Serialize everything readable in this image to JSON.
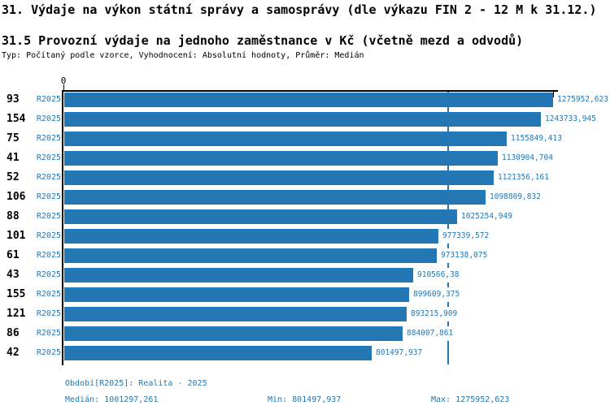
{
  "header": {
    "title": "31. Výdaje na výkon státní správy a samosprávy (dle výkazu FIN 2 - 12 M k 31.12.)",
    "subtitle": "31.5 Provozní výdaje na jednoho zaměstnance v Kč (včetně mezd a odvodů)",
    "meta": "Typ: Počítaný podle vzorce, Vyhodnocení: Absolutní hodnoty, Průměr: Medián"
  },
  "colors": {
    "bar": "#2377b4",
    "accent_text": "#2377b4",
    "axis": "#000000",
    "background": "#ffffff"
  },
  "chart_data": {
    "type": "bar",
    "orientation": "horizontal",
    "title": "31.5 Provozní výdaje na jednoho zaměstnance v Kč (včetně mezd a odvodů)",
    "xlabel": "",
    "ylabel": "",
    "axis_origin_label": "0",
    "xlim": [
      0,
      1275952.623
    ],
    "grid": false,
    "legend_position": "none",
    "series_name": "R2025",
    "median_line_value": 1001297.261,
    "categories": [
      "93",
      "154",
      "75",
      "41",
      "52",
      "106",
      "88",
      "101",
      "61",
      "43",
      "155",
      "121",
      "86",
      "42"
    ],
    "rows": [
      {
        "category": "93",
        "series": "R2025",
        "value": 1275952.623,
        "value_label": "1275952,623"
      },
      {
        "category": "154",
        "series": "R2025",
        "value": 1243733.945,
        "value_label": "1243733,945"
      },
      {
        "category": "75",
        "series": "R2025",
        "value": 1155849.413,
        "value_label": "1155849,413"
      },
      {
        "category": "41",
        "series": "R2025",
        "value": 1130904.704,
        "value_label": "1130904,704"
      },
      {
        "category": "52",
        "series": "R2025",
        "value": 1121356.161,
        "value_label": "1121356,161"
      },
      {
        "category": "106",
        "series": "R2025",
        "value": 1098809.832,
        "value_label": "1098809,832"
      },
      {
        "category": "88",
        "series": "R2025",
        "value": 1025254.949,
        "value_label": "1025254,949"
      },
      {
        "category": "101",
        "series": "R2025",
        "value": 977339.572,
        "value_label": "977339,572"
      },
      {
        "category": "61",
        "series": "R2025",
        "value": 973138.075,
        "value_label": "973138,075"
      },
      {
        "category": "43",
        "series": "R2025",
        "value": 910566.38,
        "value_label": "910566,38"
      },
      {
        "category": "155",
        "series": "R2025",
        "value": 899609.375,
        "value_label": "899609,375"
      },
      {
        "category": "121",
        "series": "R2025",
        "value": 893215.909,
        "value_label": "893215,909"
      },
      {
        "category": "86",
        "series": "R2025",
        "value": 884007.861,
        "value_label": "884007,861"
      },
      {
        "category": "42",
        "series": "R2025",
        "value": 801497.937,
        "value_label": "801497,937"
      }
    ]
  },
  "footer": {
    "period_line": "Období[R2025]: Realita - 2025",
    "median": "Medián: 1001297,261",
    "min": "Min: 801497,937",
    "max": "Max: 1275952,623"
  }
}
